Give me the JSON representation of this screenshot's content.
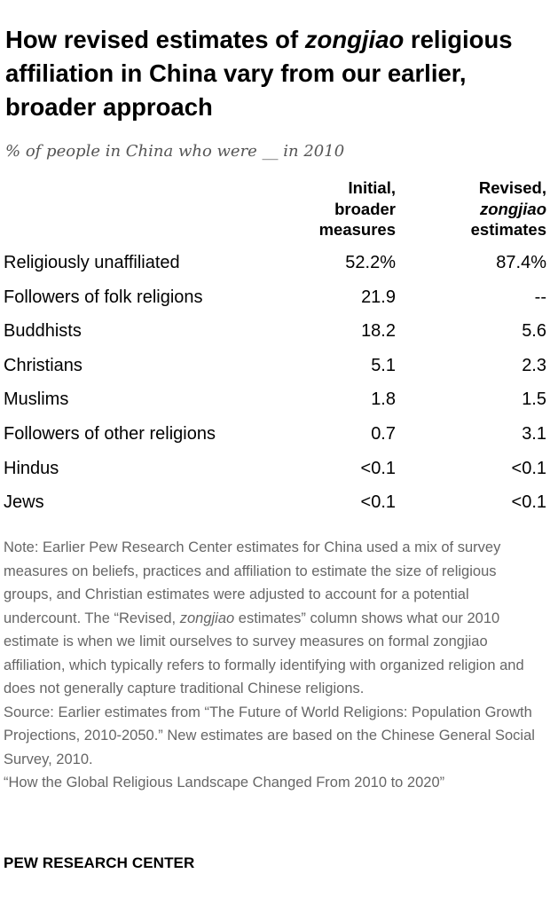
{
  "header": {
    "title_before": "How revised estimates of ",
    "title_em": "zongjiao",
    "title_after": " religious affiliation in China vary from our earlier, broader approach",
    "subtitle": "% of people in China who were __ in 2010"
  },
  "chart_data": {
    "type": "table",
    "columns": [
      {
        "line1": "Initial,",
        "line2": "broader",
        "line3": "measures"
      },
      {
        "line1": "Revised,",
        "line2": "zongjiao",
        "line3": "estimates"
      }
    ],
    "rows": [
      {
        "label": "Religiously unaffiliated",
        "initial": "52.2%",
        "revised": "87.4%"
      },
      {
        "label": "Followers of folk religions",
        "initial": "21.9",
        "revised": "--"
      },
      {
        "label": "Buddhists",
        "initial": "18.2",
        "revised": "5.6"
      },
      {
        "label": "Christians",
        "initial": "5.1",
        "revised": "2.3"
      },
      {
        "label": "Muslims",
        "initial": "1.8",
        "revised": "1.5"
      },
      {
        "label": "Followers of other religions",
        "initial": "0.7",
        "revised": "3.1"
      },
      {
        "label": "Hindus",
        "initial": "<0.1",
        "revised": "<0.1"
      },
      {
        "label": "Jews",
        "initial": "<0.1",
        "revised": "<0.1"
      }
    ]
  },
  "footer": {
    "note_a": "Note: Earlier Pew Research Center estimates for China used a mix of survey measures on beliefs, practices and affiliation to estimate the size of religious groups, and Christian estimates were adjusted to account for a potential undercount. The “Revised, ",
    "note_em": "zongjiao",
    "note_b": " estimates” column shows what our 2010 estimate is when we limit ourselves to survey measures on formal zongjiao affiliation, which typically refers to formally identifying with organized religion and does not generally capture traditional Chinese religions.",
    "source": "Source: Earlier estimates from “The Future of World Religions: Population Growth Projections, 2010-2050.” New estimates are based on the Chinese General Social Survey, 2010.",
    "report": "“How the Global Religious Landscape Changed From 2010 to 2020”",
    "org": "PEW RESEARCH CENTER"
  }
}
